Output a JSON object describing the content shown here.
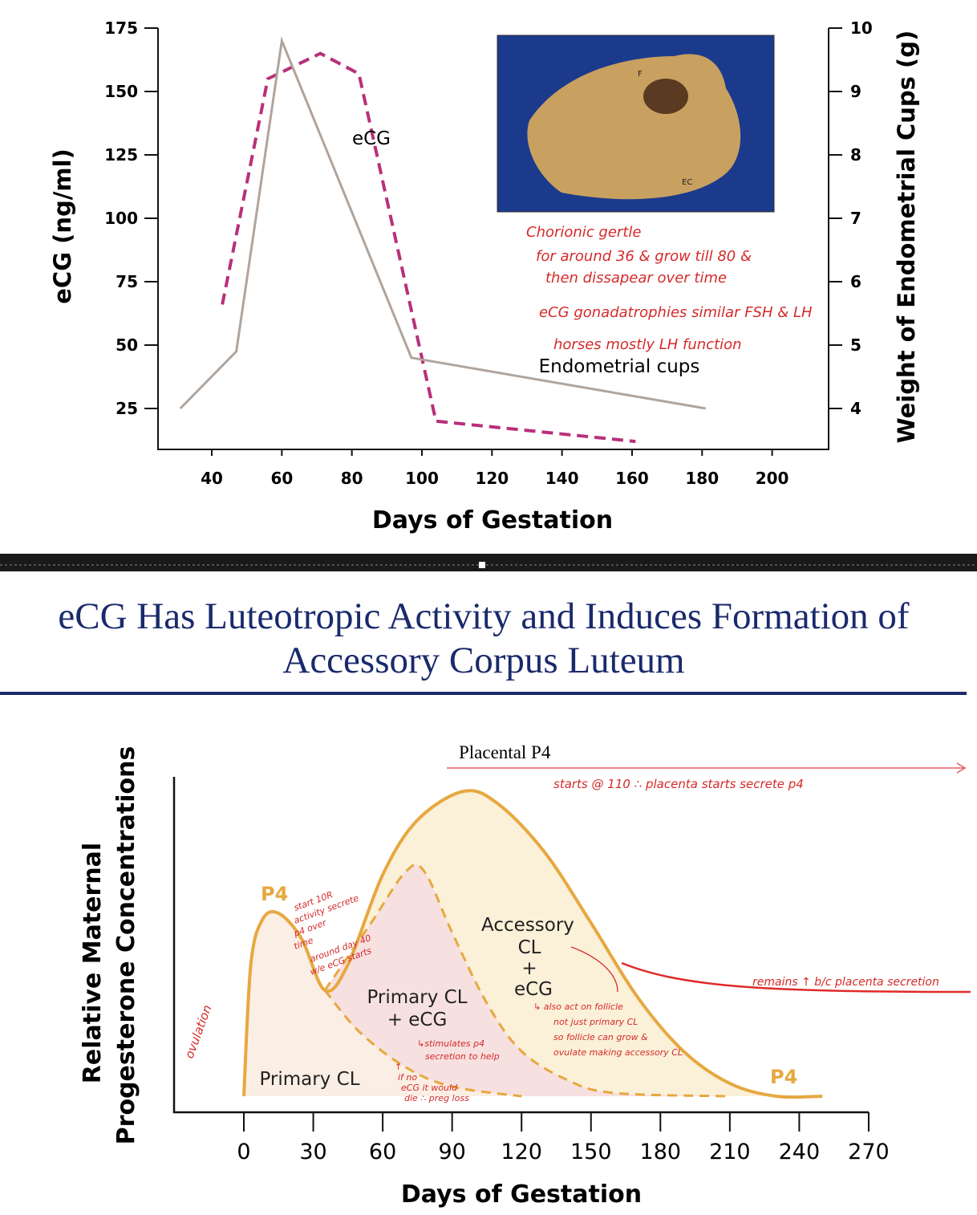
{
  "chart_data": [
    {
      "type": "line",
      "xlabel": "Days of Gestation",
      "ylabel": "eCG (ng/ml)",
      "y2label": "Weight of Endometrial Cups (g)",
      "xlim": [
        25,
        215
      ],
      "ylim": [
        0,
        175
      ],
      "y2lim": [
        2.8,
        10
      ],
      "xticks": [
        40,
        60,
        80,
        100,
        120,
        140,
        160,
        180,
        200
      ],
      "yticks": [
        25,
        50,
        75,
        100,
        125,
        150,
        175
      ],
      "y2ticks": [
        4,
        5,
        6,
        7,
        8,
        9,
        10
      ],
      "grid": false,
      "series": [
        {
          "name": "eCG",
          "axis": "left",
          "style": "dashed",
          "color": "#b8307a",
          "x": [
            43,
            56,
            71,
            82,
            104,
            161
          ],
          "y": [
            66,
            155,
            165,
            157,
            20,
            12
          ]
        },
        {
          "name": "Endometrial cups",
          "axis": "right",
          "style": "solid",
          "color": "#b0a49c",
          "x": [
            31,
            47,
            60,
            97,
            181
          ],
          "y": [
            4.0,
            4.9,
            9.8,
            4.8,
            4.0
          ]
        }
      ],
      "photo_labels": [
        "F",
        "EC"
      ],
      "annotations": [
        "Chorionic gertle",
        "for around 36 & grow till 80 &",
        "then dissapear over time",
        "eCG gonadatrophies similar FSH & LH",
        "horses mostly LH function"
      ]
    },
    {
      "type": "area",
      "title": "eCG Has Luteotropic Activity and Induces Formation of Accessory Corpus Luteum",
      "title_lines": [
        "eCG Has Luteotropic Activity and Induces Formation of",
        "Accessory Corpus Luteum"
      ],
      "xlabel": "Days of Gestation",
      "ylabel_lines": [
        "Relative Maternal",
        "Progesterone Concentrations"
      ],
      "xlim": [
        -30,
        270
      ],
      "xticks": [
        0,
        30,
        60,
        90,
        120,
        150,
        180,
        210,
        240,
        270
      ],
      "grid": false,
      "colors": {
        "outline": "#e6a840",
        "fill_total": "#fbf0d8",
        "fill_primary_ecg": "#f7e0e0",
        "fill_primary": "#fbeee4",
        "title": "#1a2a6c",
        "annotation": "#d42a2a"
      },
      "series": [
        {
          "name": "P4",
          "x": [
            0,
            3,
            8,
            15,
            25,
            35,
            45,
            60,
            75,
            95,
            110,
            130,
            150,
            170,
            190,
            210,
            230,
            250
          ],
          "y": [
            5,
            46,
            60,
            62,
            54,
            38,
            46,
            74,
            91,
            100,
            96,
            81,
            59,
            36,
            19,
            9,
            5,
            5
          ]
        },
        {
          "name": "Primary CL + eCG",
          "x": [
            35,
            55,
            70,
            78,
            90,
            105,
            120,
            140,
            160,
            210
          ],
          "y": [
            38,
            59,
            75,
            75,
            56,
            34,
            19,
            10,
            6,
            5
          ]
        },
        {
          "name": "Primary CL",
          "x": [
            35,
            50,
            70,
            90,
            120
          ],
          "y": [
            38,
            25,
            14,
            8,
            5
          ]
        }
      ],
      "labels": {
        "p4_left": "P4",
        "p4_right": "P4",
        "primary_cl": "Primary CL",
        "primary_ecg_1": "Primary CL",
        "primary_ecg_2": "+ eCG",
        "acc_1": "Accessory",
        "acc_2": "CL",
        "acc_3": "+",
        "acc_4": "eCG",
        "placental": "Placental P4"
      },
      "annotations": {
        "placental": "starts @ 110 ∴ placenta starts secrete p4",
        "dip": [
          "start 10R",
          "activity secrete",
          "p4 over",
          "time",
          "around day 40",
          "w/e eCG starts"
        ],
        "stimulates": [
          "↳stimulates p4",
          "secretion to help"
        ],
        "if_no": [
          "↑",
          "if no",
          "eCG it would",
          "die ∴ preg loss"
        ],
        "follicle": [
          "↳ also act on follicle",
          "not just primary CL",
          "so follicle can grow &",
          "ovulate making accessory CL"
        ],
        "remains": "remains ↑ b/c placenta secretion",
        "ovulation": "ovulation"
      }
    }
  ]
}
